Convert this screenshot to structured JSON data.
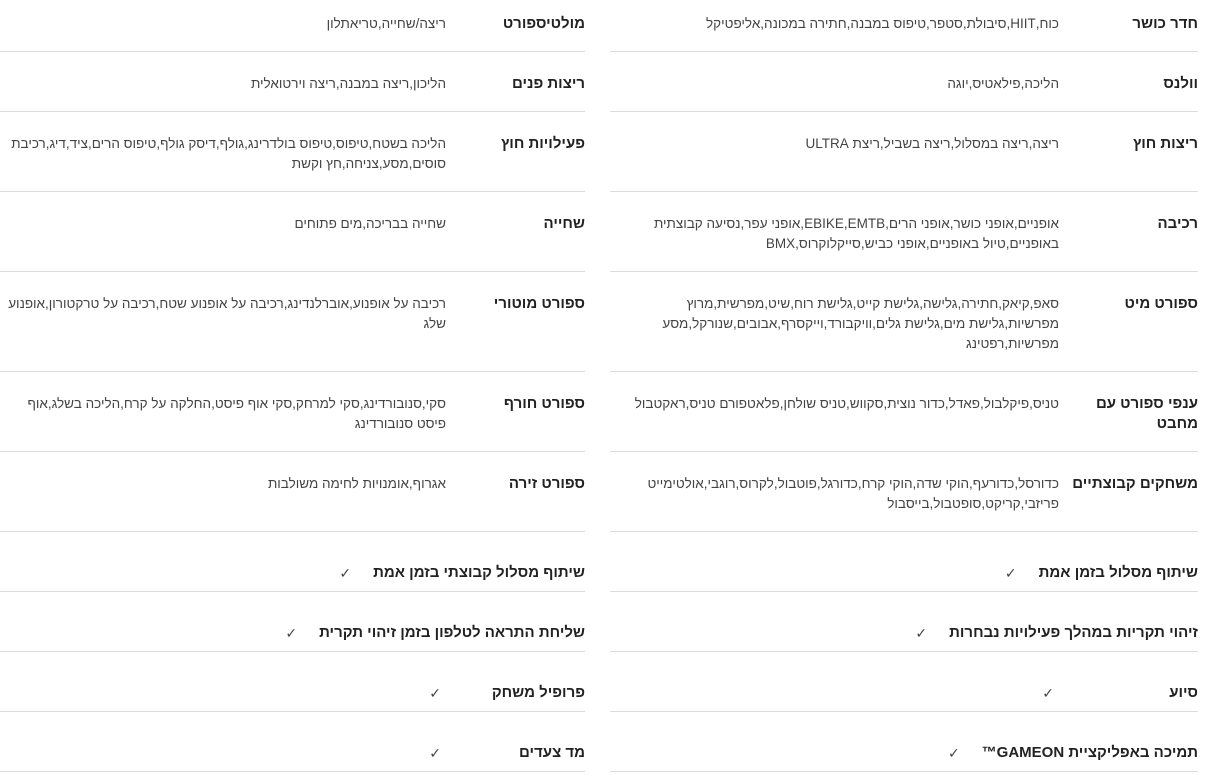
{
  "check_symbol": "✓",
  "rows": [
    {
      "right": {
        "label": "חדר כושר",
        "value": "כוח,HIIT,סיבולת,סטפר,טיפוס במבנה,חתירה במכונה,אליפטיקל"
      },
      "left": {
        "label": "מולטיספורט",
        "value": "ריצה/שחייה,טריאתלון"
      }
    },
    {
      "right": {
        "label": "וולנס",
        "value": "הליכה,פילאטיס,יוגה"
      },
      "left": {
        "label": "ריצות פנים",
        "value": "הליכון,ריצה במבנה,ריצה וירטואלית"
      }
    },
    {
      "right": {
        "label": "ריצות חוץ",
        "value": "ריצה,ריצה במסלול,ריצה בשביל,ריצת ULTRA"
      },
      "left": {
        "label": "פעילויות חוץ",
        "value": "הליכה בשטח,טיפוס,טיפוס בולדרינג,גולף,דיסק גולף,טיפוס הרים,ציד,דיג,רכיבת סוסים,מסע,צניחה,חץ וקשת"
      }
    },
    {
      "right": {
        "label": "רכיבה",
        "value": "אופניים,אופני כושר,אופני הרים,EBIKE,EMTB,אופני עפר,נסיעה קבוצתית באופניים,טיול באופניים,אופני כביש,סייקלוקרוס,BMX"
      },
      "left": {
        "label": "שחייה",
        "value": "שחייה בבריכה,מים פתוחים"
      }
    },
    {
      "right": {
        "label": "ספורט מיט",
        "value": "סאפ,קיאק,חתירה,גלישה,גלישת קייט,גלישת רוח,שיט,מפרשית,מרוץ מפרשיות,גלישת מים,גלישת גלים,וויקבורד,וייקסרף,אבובים,שנורקל,מסע מפרשיות,רפטינג"
      },
      "left": {
        "label": "ספורט מוטורי",
        "value": "רכיבה על אופנוע,אוברלנדינג,רכיבה על אופנוע שטח,רכיבה על טרקטורון,אופנוע שלג"
      }
    },
    {
      "right": {
        "label": "ענפי ספורט עם מחבט",
        "value": "טניס,פיקלבול,פאדל,כדור נוצית,סקווש,טניס שולחן,פלאטפורם טניס,ראקטבול"
      },
      "left": {
        "label": "ספורט חורף",
        "value": "סקי,סנובורדינג,סקי למרחק,סקי אוף פיסט,החלקה על קרח,הליכה בשלג,אוף פיסט סנובורדינג"
      }
    },
    {
      "right": {
        "label": "משחקים קבוצתיים",
        "value": "כדורסל,כדורעף,הוקי שדה,הוקי קרח,כדורגל,פוטבול,לקרוס,רוגבי,אולטימייט פריזבי,קריקט,סופטבול,בייסבול"
      },
      "left": {
        "label": "ספורט זירה",
        "value": "אגרוף,אומנויות לחימה משולבות"
      }
    },
    {
      "right": {
        "label": "שיתוף מסלול בזמן אמת",
        "check": true
      },
      "left": {
        "label": "שיתוף מסלול קבוצתי בזמן אמת",
        "check": true
      }
    },
    {
      "right": {
        "label": "זיהוי תקריות במהלך פעילויות נבחרות",
        "check": true
      },
      "left": {
        "label": "שליחת התראה לטלפון בזמן זיהוי תקרית",
        "check": true
      }
    },
    {
      "right": {
        "label": "סיוע",
        "check": true
      },
      "left": {
        "label": "פרופיל משחק",
        "check": true
      }
    },
    {
      "right": {
        "label": "תמיכה באפליקציית GAMEON™",
        "check": true
      },
      "left": {
        "label": "מד צעדים",
        "check": true
      }
    }
  ]
}
